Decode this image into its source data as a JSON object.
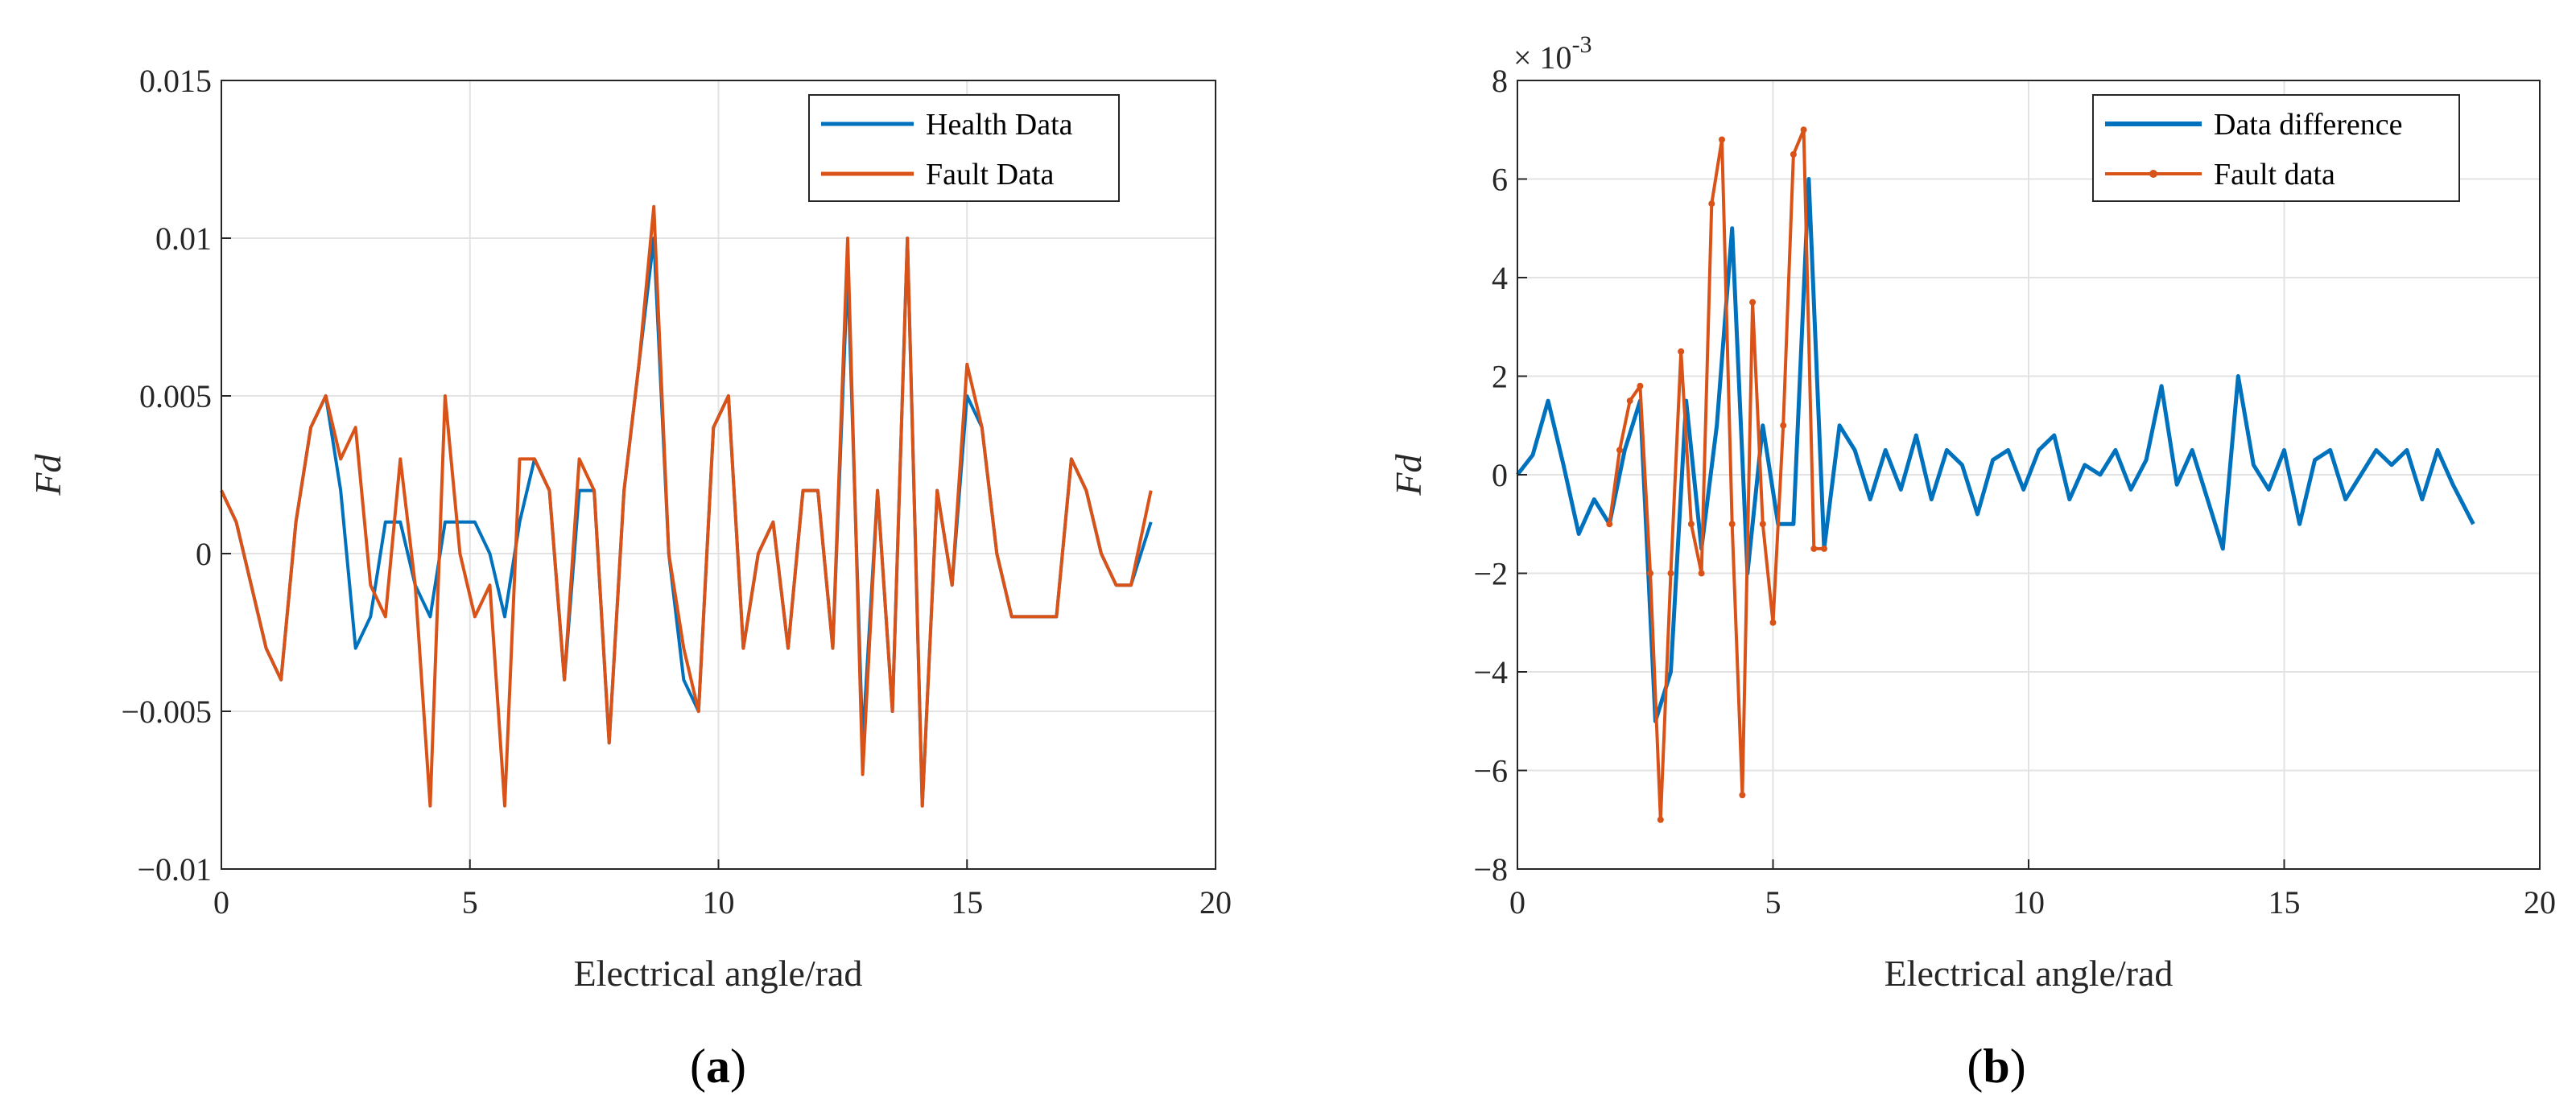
{
  "colors": {
    "health": "#0072BD",
    "fault": "#D95319",
    "axis": "#262626",
    "grid": "#e3e3e3"
  },
  "chart_data": [
    {
      "type": "line",
      "panel_label": "a",
      "title": "",
      "xlabel": "Electrical angle/rad",
      "ylabel": "Fd",
      "xlim": [
        0,
        20
      ],
      "ylim": [
        -0.01,
        0.015
      ],
      "xticks": [
        0,
        5,
        10,
        15,
        20
      ],
      "xtick_labels": [
        "0",
        "5",
        "10",
        "15",
        "20"
      ],
      "yticks": [
        -0.01,
        -0.005,
        0,
        0.005,
        0.01,
        0.015
      ],
      "ytick_labels": [
        "−0.01",
        "−0.005",
        "0",
        "0.005",
        "0.01",
        "0.015"
      ],
      "grid": true,
      "legend_position": "top-right",
      "series": [
        {
          "name": "Health Data",
          "color": "#0072BD",
          "x": [
            0,
            0.3,
            0.6,
            0.9,
            1.2,
            1.5,
            1.8,
            2.1,
            2.4,
            2.7,
            3.0,
            3.3,
            3.6,
            3.9,
            4.2,
            4.5,
            4.8,
            5.1,
            5.4,
            5.7,
            6.0,
            6.3,
            6.6,
            6.9,
            7.2,
            7.5,
            7.8,
            8.1,
            8.4,
            8.7,
            9.0,
            9.3,
            9.6,
            9.9,
            10.2,
            10.5,
            10.8,
            11.1,
            11.4,
            11.7,
            12.0,
            12.3,
            12.6,
            12.9,
            13.2,
            13.5,
            13.8,
            14.1,
            14.4,
            14.7,
            15.0,
            15.3,
            15.6,
            15.9,
            16.2,
            16.5,
            16.8,
            17.1,
            17.4,
            17.7,
            18.0,
            18.3,
            18.7
          ],
          "values": [
            0.002,
            0.001,
            -0.001,
            -0.003,
            -0.004,
            0.001,
            0.004,
            0.005,
            0.002,
            -0.003,
            -0.002,
            0.001,
            0.001,
            -0.001,
            -0.002,
            0.001,
            0.001,
            0.001,
            0,
            -0.002,
            0.001,
            0.003,
            0.002,
            -0.004,
            0.002,
            0.002,
            -0.006,
            0.002,
            0.006,
            0.01,
            0,
            -0.004,
            -0.005,
            0.004,
            0.005,
            -0.003,
            0,
            0.001,
            -0.003,
            0.002,
            0.002,
            -0.003,
            0.009,
            -0.006,
            0.002,
            -0.005,
            0.01,
            -0.008,
            0.002,
            -0.001,
            0.005,
            0.004,
            0,
            -0.002,
            -0.002,
            -0.002,
            -0.002,
            0.003,
            0.002,
            0,
            -0.001,
            -0.001,
            0.001
          ]
        },
        {
          "name": "Fault Data",
          "color": "#D95319",
          "x": [
            0,
            0.3,
            0.6,
            0.9,
            1.2,
            1.5,
            1.8,
            2.1,
            2.4,
            2.7,
            3.0,
            3.3,
            3.6,
            3.9,
            4.2,
            4.5,
            4.8,
            5.1,
            5.4,
            5.7,
            6.0,
            6.3,
            6.6,
            6.9,
            7.2,
            7.5,
            7.8,
            8.1,
            8.4,
            8.7,
            9.0,
            9.3,
            9.6,
            9.9,
            10.2,
            10.5,
            10.8,
            11.1,
            11.4,
            11.7,
            12.0,
            12.3,
            12.6,
            12.9,
            13.2,
            13.5,
            13.8,
            14.1,
            14.4,
            14.7,
            15.0,
            15.3,
            15.6,
            15.9,
            16.2,
            16.5,
            16.8,
            17.1,
            17.4,
            17.7,
            18.0,
            18.3,
            18.7
          ],
          "values": [
            0.002,
            0.001,
            -0.001,
            -0.003,
            -0.004,
            0.001,
            0.004,
            0.005,
            0.003,
            0.004,
            -0.001,
            -0.002,
            0.003,
            -0.001,
            -0.008,
            0.005,
            0,
            -0.002,
            -0.001,
            -0.008,
            0.003,
            0.003,
            0.002,
            -0.004,
            0.003,
            0.002,
            -0.006,
            0.002,
            0.006,
            0.011,
            0,
            -0.003,
            -0.005,
            0.004,
            0.005,
            -0.003,
            0,
            0.001,
            -0.003,
            0.002,
            0.002,
            -0.003,
            0.01,
            -0.007,
            0.002,
            -0.005,
            0.01,
            -0.008,
            0.002,
            -0.001,
            0.006,
            0.004,
            0,
            -0.002,
            -0.002,
            -0.002,
            -0.002,
            0.003,
            0.002,
            0,
            -0.001,
            -0.001,
            0.002
          ]
        }
      ]
    },
    {
      "type": "line",
      "panel_label": "b",
      "title": "",
      "xlabel": "Electrical angle/rad",
      "ylabel": "Fd",
      "scale_label": "× 10",
      "scale_exponent": "-3",
      "xlim": [
        0,
        20
      ],
      "ylim": [
        -8,
        8
      ],
      "xticks": [
        0,
        5,
        10,
        15,
        20
      ],
      "xtick_labels": [
        "0",
        "5",
        "10",
        "15",
        "20"
      ],
      "yticks": [
        -8,
        -6,
        -4,
        -2,
        0,
        2,
        4,
        6,
        8
      ],
      "ytick_labels": [
        "−8",
        "−6",
        "−4",
        "−2",
        "0",
        "2",
        "4",
        "6",
        "8"
      ],
      "grid": true,
      "legend_position": "top-right",
      "series": [
        {
          "name": "Data difference",
          "color": "#0072BD",
          "x": [
            0,
            0.3,
            0.6,
            0.9,
            1.2,
            1.5,
            1.8,
            2.1,
            2.4,
            2.7,
            3.0,
            3.3,
            3.6,
            3.9,
            4.2,
            4.5,
            4.8,
            5.1,
            5.4,
            5.7,
            6.0,
            6.3,
            6.6,
            6.9,
            7.2,
            7.5,
            7.8,
            8.1,
            8.4,
            8.7,
            9.0,
            9.3,
            9.6,
            9.9,
            10.2,
            10.5,
            10.8,
            11.1,
            11.4,
            11.7,
            12.0,
            12.3,
            12.6,
            12.9,
            13.2,
            13.5,
            13.8,
            14.1,
            14.4,
            14.7,
            15.0,
            15.3,
            15.6,
            15.9,
            16.2,
            16.5,
            16.8,
            17.1,
            17.4,
            17.7,
            18.0,
            18.3,
            18.7
          ],
          "values": [
            0,
            0.4,
            1.5,
            0.2,
            -1.2,
            -0.5,
            -1,
            0.5,
            1.5,
            -5,
            -4,
            1.5,
            -1.5,
            1,
            5,
            -2,
            1,
            -1,
            -1,
            6,
            -1.5,
            1,
            0.5,
            -0.5,
            0.5,
            -0.3,
            0.8,
            -0.5,
            0.5,
            0.2,
            -0.8,
            0.3,
            0.5,
            -0.3,
            0.5,
            0.8,
            -0.5,
            0.2,
            0,
            0.5,
            -0.3,
            0.3,
            1.8,
            -0.2,
            0.5,
            -0.5,
            -1.5,
            2,
            0.2,
            -0.3,
            0.5,
            -1,
            0.3,
            0.5,
            -0.5,
            0,
            0.5,
            0.2,
            0.5,
            -0.5,
            0.5,
            -0.2,
            -1
          ]
        },
        {
          "name": "Fault data",
          "color": "#D95319",
          "x": [
            1.8,
            2.0,
            2.2,
            2.4,
            2.6,
            2.8,
            3.0,
            3.2,
            3.4,
            3.6,
            3.8,
            4.0,
            4.2,
            4.4,
            4.6,
            4.8,
            5.0,
            5.2,
            5.4,
            5.6,
            5.8,
            6.0
          ],
          "values": [
            -1,
            0.5,
            1.5,
            1.8,
            -2,
            -7,
            -2,
            2.5,
            -1,
            -2,
            5.5,
            6.8,
            -1,
            -6.5,
            3.5,
            -1,
            -3,
            1,
            6.5,
            7,
            -1.5,
            -1.5
          ]
        }
      ]
    }
  ]
}
